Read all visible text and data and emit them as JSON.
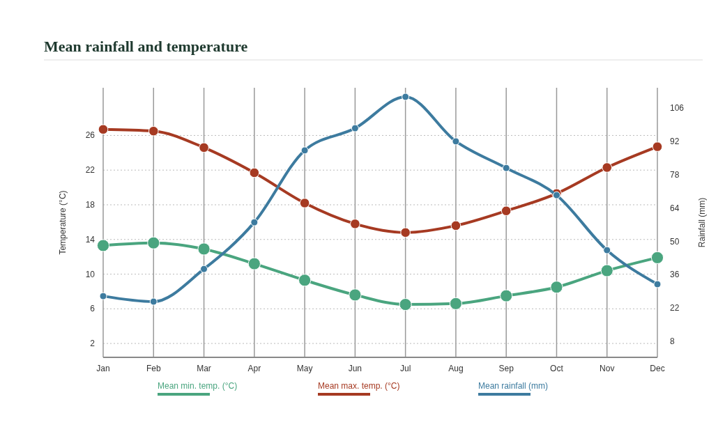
{
  "chart_data": {
    "type": "line",
    "title": "Mean rainfall and temperature",
    "ylabel": "Temperature (°C)",
    "y2label": "Rainfall (mm)",
    "categories": [
      "Jan",
      "Feb",
      "Mar",
      "Apr",
      "May",
      "Jun",
      "Jul",
      "Aug",
      "Sep",
      "Oct",
      "Nov",
      "Dec"
    ],
    "ylim": [
      0.4,
      31.5
    ],
    "yticks": [
      2,
      6,
      10,
      14,
      18,
      22,
      26
    ],
    "y2lim": [
      1.3,
      114.5
    ],
    "y2ticks": [
      8,
      22,
      36,
      50,
      64,
      78,
      92,
      106
    ],
    "grid": true,
    "legend": "bottom",
    "marker": "circle",
    "line_style": "solid",
    "series": [
      {
        "name": "Mean min. temp. (°C)",
        "color": "#4aa57f",
        "values": [
          13.3,
          13.6,
          12.9,
          11.2,
          9.3,
          7.6,
          6.5,
          6.6,
          7.5,
          8.5,
          10.4,
          11.9
        ]
      },
      {
        "name": "Mean max. temp. (°C)",
        "color": "#a63a22",
        "values": [
          26.7,
          26.5,
          24.6,
          21.7,
          18.2,
          15.8,
          14.8,
          15.6,
          17.3,
          19.3,
          22.3,
          24.7
        ]
      },
      {
        "name": "Mean rainfall (mm)",
        "color": "#3d7b9f",
        "axis": "y2",
        "values": [
          27.0,
          24.7,
          38.4,
          58.0,
          88.2,
          97.5,
          110.7,
          92.0,
          80.8,
          69.4,
          46.3,
          32.0
        ]
      }
    ]
  }
}
